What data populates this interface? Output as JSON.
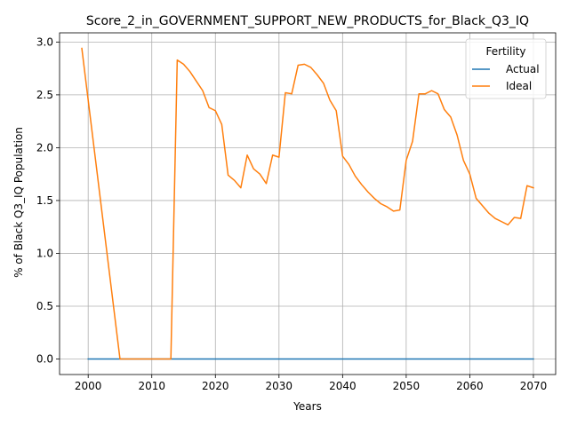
{
  "chart_data": {
    "type": "line",
    "title": "Score_2_in_GOVERNMENT_SUPPORT_NEW_PRODUCTS_for_Black_Q3_IQ",
    "xlabel": "Years",
    "ylabel": "% of Black Q3_IQ Population",
    "xlim": [
      1995.5,
      2073.5
    ],
    "ylim": [
      -0.147,
      3.087
    ],
    "x_ticks": [
      2000,
      2010,
      2020,
      2030,
      2040,
      2050,
      2060,
      2070
    ],
    "y_ticks": [
      0.0,
      0.5,
      1.0,
      1.5,
      2.0,
      2.5,
      3.0
    ],
    "y_tick_labels": [
      "0.0",
      "0.5",
      "1.0",
      "1.5",
      "2.0",
      "2.5",
      "3.0"
    ],
    "grid": true,
    "legend": {
      "title": "Fertility",
      "placement": "top-right"
    },
    "series": [
      {
        "name": "Actual",
        "color": "#1f77b4",
        "x": [
          2000,
          2070
        ],
        "y": [
          0.0,
          0.0
        ]
      },
      {
        "name": "Ideal",
        "color": "#ff7f0e",
        "x": [
          1999,
          2000,
          2001,
          2002,
          2003,
          2004,
          2005,
          2006,
          2007,
          2008,
          2009,
          2010,
          2011,
          2012,
          2013,
          2014,
          2015,
          2016,
          2017,
          2018,
          2019,
          2020,
          2021,
          2022,
          2023,
          2024,
          2025,
          2026,
          2027,
          2028,
          2029,
          2030,
          2031,
          2032,
          2033,
          2034,
          2035,
          2036,
          2037,
          2038,
          2039,
          2040,
          2041,
          2042,
          2043,
          2044,
          2045,
          2046,
          2047,
          2048,
          2049,
          2050,
          2051,
          2052,
          2053,
          2054,
          2055,
          2056,
          2057,
          2058,
          2059,
          2060,
          2061,
          2062,
          2063,
          2064,
          2065,
          2066,
          2067,
          2068,
          2069,
          2070
        ],
        "y": [
          2.94,
          2.45,
          1.96,
          1.47,
          0.98,
          0.49,
          0.0,
          0.0,
          0.0,
          0.0,
          0.0,
          0.0,
          0.0,
          0.0,
          0.0,
          2.83,
          2.79,
          2.72,
          2.63,
          2.54,
          2.38,
          2.35,
          2.22,
          1.74,
          1.69,
          1.62,
          1.93,
          1.8,
          1.75,
          1.66,
          1.93,
          1.91,
          2.52,
          2.51,
          2.78,
          2.79,
          2.76,
          2.69,
          2.61,
          2.45,
          2.35,
          1.92,
          1.84,
          1.73,
          1.65,
          1.58,
          1.52,
          1.47,
          1.44,
          1.4,
          1.41,
          1.88,
          2.06,
          2.51,
          2.51,
          2.54,
          2.51,
          2.36,
          2.29,
          2.12,
          1.88,
          1.75,
          1.52,
          1.45,
          1.38,
          1.33,
          1.3,
          1.27,
          1.34,
          1.33,
          1.64,
          1.62
        ]
      }
    ]
  }
}
